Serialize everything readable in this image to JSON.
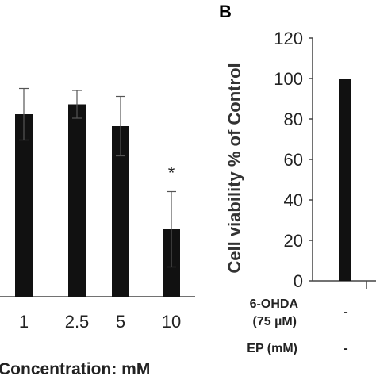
{
  "chart_data": [
    {
      "type": "bar",
      "categories": [
        "1",
        "2.5",
        "5",
        "10"
      ],
      "values": [
        92,
        97,
        86,
        34
      ],
      "errors": [
        13,
        7,
        15,
        19
      ],
      "annotations": [
        "",
        "",
        "",
        "*"
      ],
      "xlabel": "Concentration: mM",
      "ylim": [
        0,
        120
      ],
      "grid": false,
      "colors": {
        "bar": "#111111"
      }
    },
    {
      "type": "bar",
      "panel_label": "B",
      "values": [
        100
      ],
      "ylabel": "Cell viability  % of Control",
      "ylim": [
        0,
        120
      ],
      "yticks": [
        "0",
        "20",
        "40",
        "60",
        "80",
        "100",
        "120"
      ],
      "conditions": [
        {
          "label_line1": "6-OHDA",
          "label_line2": "(75 µM)",
          "value": "-"
        },
        {
          "label_line1": "EP (mM)",
          "label_line2": "",
          "value": "-"
        }
      ],
      "grid": false,
      "colors": {
        "bar": "#111111"
      }
    }
  ]
}
